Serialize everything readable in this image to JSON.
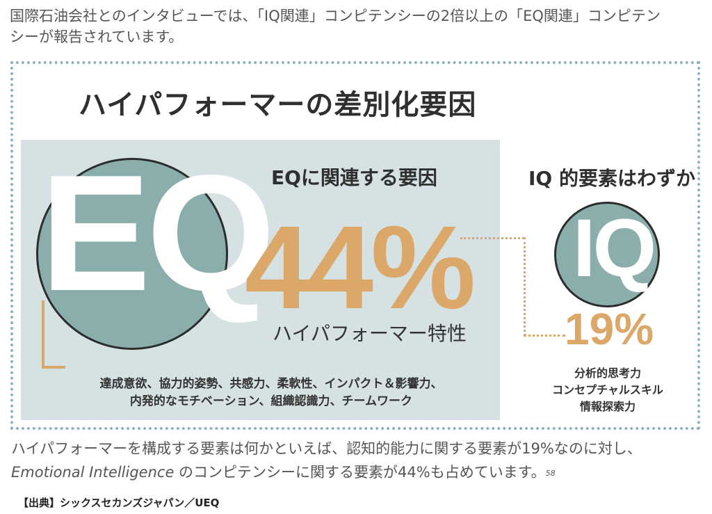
{
  "intro": {
    "line1": "国際石油会社とのインタビューでは、「IQ関連」コンピテンシーの2倍以上の「EQ関連」コンピテン",
    "line2": "シーが報告されています。"
  },
  "infographic": {
    "title": "ハイパフォーマーの差別化要因",
    "eq": {
      "letters": "EQ",
      "heading": "EQに関連する要因",
      "percent": "44%",
      "subtitle": "ハイパフォーマー特性",
      "factors_line1": "達成意欲、協力的姿勢、共感力、柔軟性、インパクト＆影響力、",
      "factors_line2": "内発的なモチベーション、組織認識力、チームワーク"
    },
    "iq": {
      "letters": "IQ",
      "heading": "IQ 的要素はわずか",
      "percent": "19%",
      "factors_line1": "分析的思考力",
      "factors_line2": "コンセプチャルスキル",
      "factors_line3": "情報探索力"
    },
    "colors": {
      "panel": "#d5e1e2",
      "circle": "#8aaeac",
      "accent": "#dba86a",
      "frame_dots": "#8fb0bd"
    }
  },
  "body": {
    "line1": "ハイパフォーマーを構成する要素は何かといえば、認知的能力に関する要素が19%なのに対し、",
    "line2_italic": "Emotional Intelligence",
    "line2_rest": " のコンピテンシーに関する要素が44%も占めています。",
    "footnote": "58"
  },
  "source": "【出典】シックスセカンズジャパン／UEQ"
}
